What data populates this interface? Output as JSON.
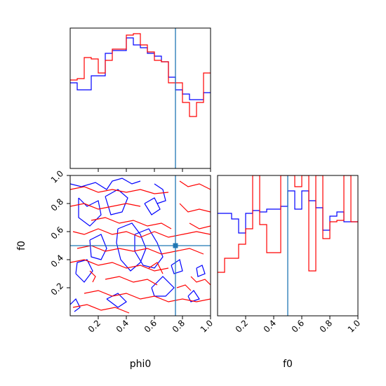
{
  "chart_data": {
    "type": "corner",
    "parameters": [
      "phi0",
      "f0"
    ],
    "truth": {
      "phi0": 0.75,
      "f0": 0.5
    },
    "colors": {
      "series_a": "#0000ff",
      "series_b": "#ff0000",
      "truth": "#1f77b4"
    },
    "ticks": {
      "phi0": [
        "0.2",
        "0.4",
        "0.6",
        "0.8",
        "1.0"
      ],
      "f0": [
        "0.2",
        "0.4",
        "0.6",
        "0.8",
        "1.0"
      ],
      "f0_y": [
        "0.2",
        "0.4",
        "0.6",
        "0.8",
        "1.0"
      ]
    },
    "hist_phi0": {
      "bins": [
        0.0,
        0.05,
        0.1,
        0.15,
        0.2,
        0.25,
        0.3,
        0.35,
        0.4,
        0.45,
        0.5,
        0.55,
        0.6,
        0.65,
        0.7,
        0.75,
        0.8,
        0.85,
        0.9,
        0.95,
        1.0
      ],
      "series": [
        {
          "values": [
            0.61,
            0.56,
            0.56,
            0.66,
            0.66,
            0.82,
            0.84,
            0.84,
            0.93,
            0.88,
            0.86,
            0.82,
            0.8,
            0.76,
            0.65,
            0.56,
            0.53,
            0.49,
            0.49,
            0.54
          ]
        },
        {
          "values": [
            0.63,
            0.64,
            0.79,
            0.78,
            0.68,
            0.77,
            0.85,
            0.85,
            0.95,
            0.96,
            0.88,
            0.83,
            0.77,
            0.76,
            0.61,
            0.61,
            0.47,
            0.37,
            0.47,
            0.68
          ]
        }
      ],
      "ylim": [
        0,
        1.0
      ]
    },
    "hist_f0": {
      "bins": [
        0.0,
        0.05,
        0.1,
        0.15,
        0.2,
        0.25,
        0.3,
        0.35,
        0.4,
        0.45,
        0.5,
        0.55,
        0.6,
        0.65,
        0.7,
        0.75,
        0.8,
        0.85,
        0.9,
        0.95,
        1.0
      ],
      "series": [
        {
          "values": [
            0.73,
            0.73,
            0.69,
            0.59,
            0.73,
            0.75,
            0.74,
            0.76,
            0.76,
            0.78,
            0.89,
            0.76,
            0.89,
            0.82,
            0.77,
            0.61,
            0.71,
            0.74,
            0.67,
            0.67
          ]
        },
        {
          "values": [
            0.31,
            0.41,
            0.41,
            0.51,
            0.62,
            1.0,
            0.65,
            0.45,
            0.45,
            1.0,
            1.0,
            0.92,
            1.0,
            0.32,
            1.0,
            0.55,
            0.67,
            0.68,
            1.0,
            0.67
          ]
        }
      ],
      "ylim": [
        0,
        1.0
      ]
    },
    "contour_2d": {
      "xlim": [
        0,
        1.0
      ],
      "ylim": [
        0,
        1.0
      ],
      "series": [
        {
          "paths": [
            [
              [
                0.0,
                0.94
              ],
              [
                0.08,
                0.92
              ],
              [
                0.18,
                0.95
              ],
              [
                0.26,
                0.9
              ],
              [
                0.3,
                0.96
              ],
              [
                0.37,
                0.98
              ],
              [
                0.44,
                0.94
              ],
              [
                0.5,
                0.96
              ]
            ],
            [
              [
                0.06,
                0.84
              ],
              [
                0.12,
                0.78
              ],
              [
                0.2,
                0.82
              ],
              [
                0.22,
                0.72
              ],
              [
                0.14,
                0.64
              ],
              [
                0.06,
                0.7
              ],
              [
                0.06,
                0.84
              ]
            ],
            [
              [
                0.25,
                0.85
              ],
              [
                0.34,
                0.9
              ],
              [
                0.41,
                0.84
              ],
              [
                0.37,
                0.74
              ],
              [
                0.29,
                0.72
              ],
              [
                0.25,
                0.85
              ]
            ],
            [
              [
                0.34,
                0.62
              ],
              [
                0.44,
                0.66
              ],
              [
                0.5,
                0.58
              ],
              [
                0.54,
                0.48
              ],
              [
                0.5,
                0.38
              ],
              [
                0.43,
                0.32
              ],
              [
                0.36,
                0.4
              ],
              [
                0.33,
                0.52
              ],
              [
                0.34,
                0.62
              ]
            ],
            [
              [
                0.46,
                0.58
              ],
              [
                0.56,
                0.62
              ],
              [
                0.62,
                0.52
              ],
              [
                0.66,
                0.42
              ],
              [
                0.6,
                0.34
              ],
              [
                0.52,
                0.36
              ],
              [
                0.46,
                0.46
              ],
              [
                0.46,
                0.58
              ]
            ],
            [
              [
                0.14,
                0.54
              ],
              [
                0.22,
                0.58
              ],
              [
                0.26,
                0.48
              ],
              [
                0.22,
                0.4
              ],
              [
                0.15,
                0.42
              ],
              [
                0.14,
                0.54
              ]
            ],
            [
              [
                0.04,
                0.3
              ],
              [
                0.1,
                0.24
              ],
              [
                0.16,
                0.32
              ],
              [
                0.12,
                0.4
              ],
              [
                0.05,
                0.38
              ],
              [
                0.04,
                0.3
              ]
            ],
            [
              [
                0.58,
                0.2
              ],
              [
                0.66,
                0.28
              ],
              [
                0.74,
                0.2
              ],
              [
                0.68,
                0.14
              ],
              [
                0.6,
                0.14
              ],
              [
                0.58,
                0.2
              ]
            ],
            [
              [
                0.53,
                0.8
              ],
              [
                0.6,
                0.84
              ],
              [
                0.64,
                0.76
              ],
              [
                0.58,
                0.72
              ],
              [
                0.53,
                0.8
              ]
            ],
            [
              [
                0.72,
                0.36
              ],
              [
                0.78,
                0.4
              ],
              [
                0.8,
                0.32
              ],
              [
                0.74,
                0.3
              ],
              [
                0.72,
                0.36
              ]
            ],
            [
              [
                0.26,
                0.12
              ],
              [
                0.34,
                0.16
              ],
              [
                0.4,
                0.1
              ],
              [
                0.34,
                0.06
              ],
              [
                0.26,
                0.12
              ]
            ],
            [
              [
                0.9,
                0.34
              ],
              [
                0.94,
                0.36
              ],
              [
                0.96,
                0.3
              ],
              [
                0.91,
                0.28
              ],
              [
                0.9,
                0.34
              ]
            ],
            [
              [
                0.84,
                0.14
              ],
              [
                0.88,
                0.18
              ],
              [
                0.92,
                0.12
              ],
              [
                0.86,
                0.1
              ],
              [
                0.84,
                0.14
              ]
            ],
            [
              [
                0.0,
                0.08
              ],
              [
                0.04,
                0.12
              ],
              [
                0.07,
                0.06
              ],
              [
                0.03,
                0.03
              ]
            ],
            [
              [
                0.6,
                0.94
              ],
              [
                0.66,
                0.9
              ],
              [
                0.68,
                0.82
              ],
              [
                0.62,
                0.8
              ]
            ]
          ]
        },
        {
          "paths": [
            [
              [
                0.0,
                0.9
              ],
              [
                0.1,
                0.92
              ],
              [
                0.2,
                0.88
              ],
              [
                0.3,
                0.9
              ],
              [
                0.4,
                0.88
              ],
              [
                0.5,
                0.9
              ],
              [
                0.6,
                0.87
              ],
              [
                0.7,
                0.88
              ]
            ],
            [
              [
                0.0,
                0.78
              ],
              [
                0.1,
                0.8
              ],
              [
                0.2,
                0.76
              ],
              [
                0.3,
                0.78
              ],
              [
                0.4,
                0.8
              ],
              [
                0.5,
                0.78
              ]
            ],
            [
              [
                0.15,
                0.68
              ],
              [
                0.25,
                0.7
              ],
              [
                0.35,
                0.66
              ],
              [
                0.45,
                0.68
              ],
              [
                0.55,
                0.64
              ],
              [
                0.65,
                0.66
              ],
              [
                0.72,
                0.62
              ]
            ],
            [
              [
                0.02,
                0.6
              ],
              [
                0.1,
                0.58
              ],
              [
                0.2,
                0.62
              ],
              [
                0.3,
                0.58
              ],
              [
                0.4,
                0.6
              ],
              [
                0.5,
                0.56
              ],
              [
                0.6,
                0.6
              ],
              [
                0.7,
                0.56
              ],
              [
                0.8,
                0.58
              ],
              [
                0.9,
                0.6
              ],
              [
                1.0,
                0.58
              ]
            ],
            [
              [
                0.05,
                0.48
              ],
              [
                0.15,
                0.5
              ],
              [
                0.25,
                0.46
              ],
              [
                0.35,
                0.48
              ],
              [
                0.45,
                0.46
              ],
              [
                0.55,
                0.48
              ],
              [
                0.65,
                0.44
              ],
              [
                0.75,
                0.46
              ],
              [
                0.85,
                0.48
              ],
              [
                0.95,
                0.44
              ]
            ],
            [
              [
                0.0,
                0.38
              ],
              [
                0.1,
                0.4
              ],
              [
                0.2,
                0.36
              ],
              [
                0.3,
                0.38
              ],
              [
                0.4,
                0.34
              ],
              [
                0.5,
                0.36
              ],
              [
                0.6,
                0.32
              ],
              [
                0.7,
                0.34
              ]
            ],
            [
              [
                0.25,
                0.26
              ],
              [
                0.35,
                0.28
              ],
              [
                0.45,
                0.24
              ],
              [
                0.55,
                0.26
              ],
              [
                0.62,
                0.22
              ]
            ],
            [
              [
                0.1,
                0.16
              ],
              [
                0.2,
                0.18
              ],
              [
                0.3,
                0.14
              ],
              [
                0.4,
                0.16
              ],
              [
                0.5,
                0.12
              ],
              [
                0.6,
                0.14
              ],
              [
                0.7,
                0.1
              ],
              [
                0.8,
                0.12
              ],
              [
                0.9,
                0.1
              ],
              [
                1.0,
                0.12
              ]
            ],
            [
              [
                0.02,
                0.06
              ],
              [
                0.12,
                0.08
              ],
              [
                0.22,
                0.04
              ],
              [
                0.32,
                0.06
              ],
              [
                0.42,
                0.02
              ]
            ],
            [
              [
                0.78,
                0.96
              ],
              [
                0.84,
                0.92
              ],
              [
                0.92,
                0.94
              ],
              [
                1.0,
                0.9
              ]
            ],
            [
              [
                0.78,
                0.8
              ],
              [
                0.84,
                0.74
              ],
              [
                0.92,
                0.76
              ],
              [
                1.0,
                0.74
              ]
            ],
            [
              [
                0.85,
                0.66
              ],
              [
                0.92,
                0.62
              ],
              [
                1.0,
                0.64
              ]
            ],
            [
              [
                0.86,
                0.28
              ],
              [
                0.9,
                0.24
              ],
              [
                0.96,
                0.26
              ],
              [
                1.0,
                0.22
              ]
            ],
            [
              [
                0.76,
                0.2
              ],
              [
                0.82,
                0.22
              ],
              [
                0.86,
                0.18
              ]
            ],
            [
              [
                0.14,
                0.32
              ],
              [
                0.18,
                0.28
              ],
              [
                0.16,
                0.24
              ]
            ],
            [
              [
                0.56,
                0.34
              ],
              [
                0.62,
                0.38
              ],
              [
                0.66,
                0.3
              ]
            ]
          ]
        }
      ]
    },
    "xlabel_phi0": "phi0",
    "xlabel_f0": "f0",
    "ylabel_f0": "f0"
  }
}
